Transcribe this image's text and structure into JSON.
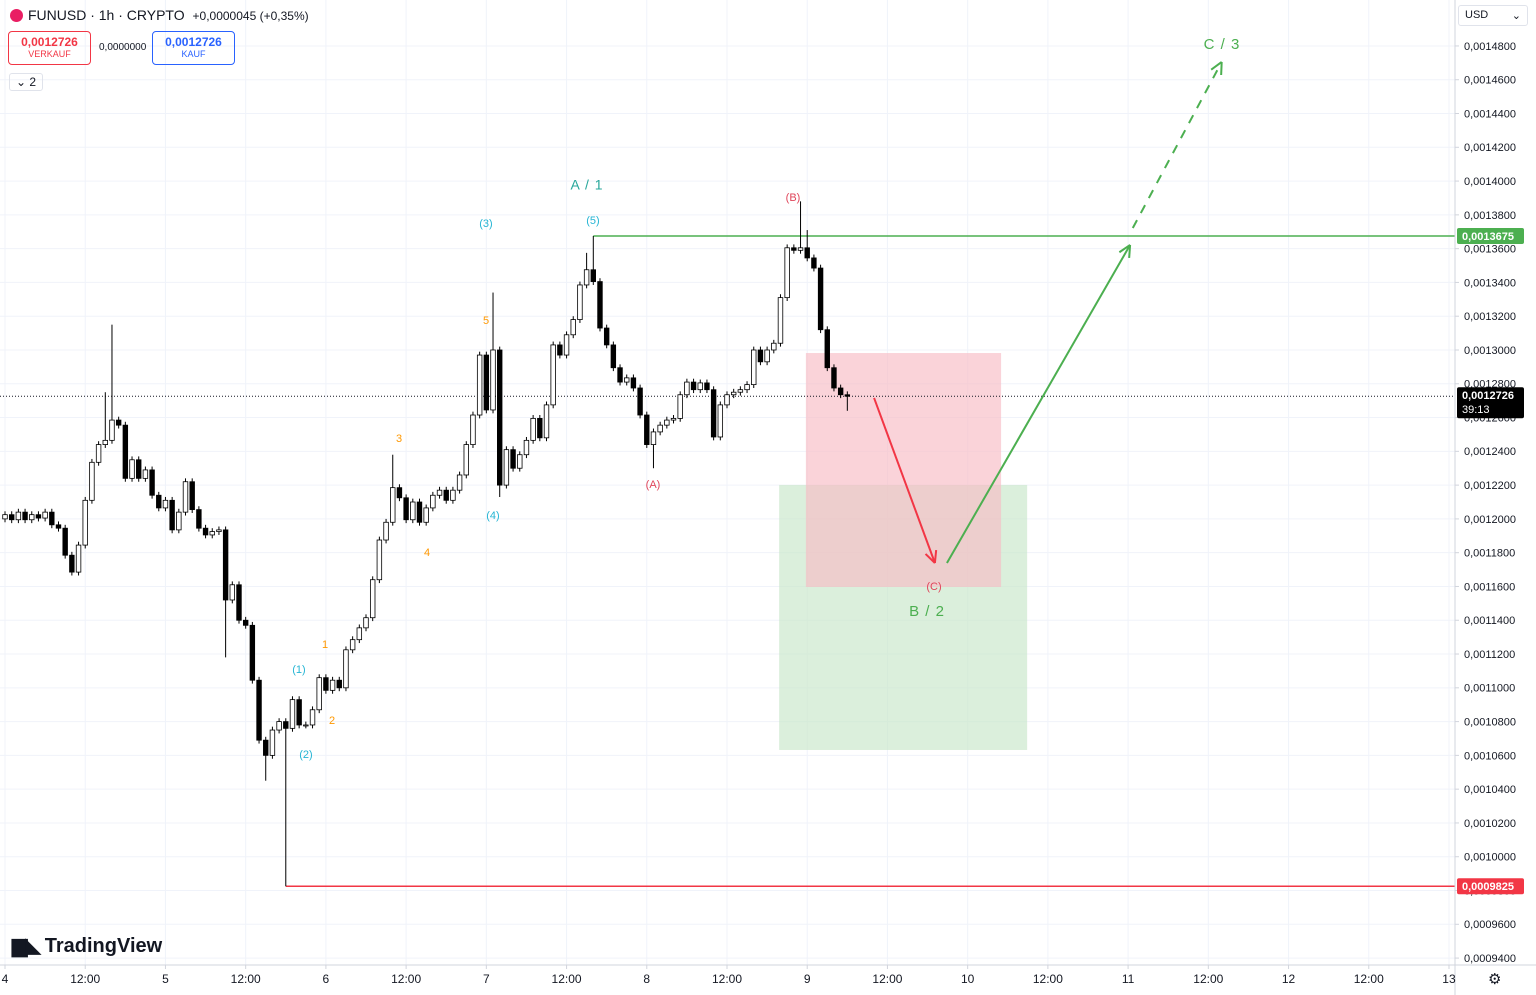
{
  "header": {
    "symbol": "FUNUSD · 1h · CRYPTO",
    "change": "+0,0000045 (+0,35%)",
    "sell_price": "0,0012726",
    "sell_label": "VERKAUF",
    "spread": "0,0000000",
    "buy_price": "0,0012726",
    "buy_label": "KAUF",
    "indicators_count": "2",
    "currency": "USD",
    "logo": "TradingView"
  },
  "chart_data": {
    "type": "candlestick",
    "up_color": "#ffffff",
    "down_color": "#000000",
    "grid": true,
    "xlim": [
      -0.75,
      216.9
    ],
    "xticks": [
      {
        "value": 0,
        "label": "4"
      },
      {
        "value": 12,
        "label": "12:00"
      },
      {
        "value": 24,
        "label": "5"
      },
      {
        "value": 36,
        "label": "12:00"
      },
      {
        "value": 48,
        "label": "6"
      },
      {
        "value": 60,
        "label": "12:00"
      },
      {
        "value": 72,
        "label": "7"
      },
      {
        "value": 84,
        "label": "12:00"
      },
      {
        "value": 96,
        "label": "8"
      },
      {
        "value": 108,
        "label": "12:00"
      },
      {
        "value": 120,
        "label": "9"
      },
      {
        "value": 132,
        "label": "12:00"
      },
      {
        "value": 144,
        "label": "10"
      },
      {
        "value": 156,
        "label": "12:00"
      },
      {
        "value": 168,
        "label": "11"
      },
      {
        "value": 180,
        "label": "12:00"
      },
      {
        "value": 192,
        "label": "12"
      },
      {
        "value": 204,
        "label": "12:00"
      },
      {
        "value": 216,
        "label": "13"
      }
    ],
    "ylim": [
      0.0009359,
      0.0015072
    ],
    "yticks": [
      {
        "value": 0.00094,
        "label": "0,0009400"
      },
      {
        "value": 0.00096,
        "label": "0,0009600"
      },
      {
        "value": 0.00098,
        "label": "0,0009800"
      },
      {
        "value": 0.001,
        "label": "0,0010000"
      },
      {
        "value": 0.00102,
        "label": "0,0010200"
      },
      {
        "value": 0.00104,
        "label": "0,0010400"
      },
      {
        "value": 0.00106,
        "label": "0,0010600"
      },
      {
        "value": 0.00108,
        "label": "0,0010800"
      },
      {
        "value": 0.0011,
        "label": "0,0011000"
      },
      {
        "value": 0.00112,
        "label": "0,0011200"
      },
      {
        "value": 0.00114,
        "label": "0,0011400"
      },
      {
        "value": 0.00116,
        "label": "0,0011600"
      },
      {
        "value": 0.00118,
        "label": "0,0011800"
      },
      {
        "value": 0.0012,
        "label": "0,0012000"
      },
      {
        "value": 0.00122,
        "label": "0,0012200"
      },
      {
        "value": 0.00124,
        "label": "0,0012400"
      },
      {
        "value": 0.00126,
        "label": "0,0012600"
      },
      {
        "value": 0.00128,
        "label": "0,0012800"
      },
      {
        "value": 0.0013,
        "label": "0,0013000"
      },
      {
        "value": 0.00132,
        "label": "0,0013200"
      },
      {
        "value": 0.00134,
        "label": "0,0013400"
      },
      {
        "value": 0.00136,
        "label": "0,0013600"
      },
      {
        "value": 0.00138,
        "label": "0,0013800"
      },
      {
        "value": 0.0014,
        "label": "0,0014000"
      },
      {
        "value": 0.00142,
        "label": "0,0014200"
      },
      {
        "value": 0.00144,
        "label": "0,0014400"
      },
      {
        "value": 0.00146,
        "label": "0,0014600"
      },
      {
        "value": 0.00148,
        "label": "0,0014800"
      }
    ],
    "open": [
      0.0012,
      0.0012025,
      0.0011995,
      0.001204,
      0.0011995,
      0.0012025,
      0.0012005,
      0.001204,
      0.0011965,
      0.0011945,
      0.0011785,
      0.0011685,
      0.0011845,
      0.001211,
      0.0012335,
      0.001244,
      0.0012465,
      0.0012585,
      0.0012555,
      0.001224,
      0.001235,
      0.001224,
      0.001229,
      0.001214,
      0.0012065,
      0.001211,
      0.0011935,
      0.001204,
      0.001222,
      0.0012055,
      0.0011945,
      0.0011905,
      0.0011925,
      0.0011935,
      0.001152,
      0.001161,
      0.00114,
      0.001137,
      0.0011045,
      0.001069,
      0.00106,
      0.001075,
      0.00108,
      0.001076,
      0.001093,
      0.001078,
      0.001078,
      0.001087,
      0.001106,
      0.0010985,
      0.0011045,
      0.0011,
      0.0011225,
      0.0011285,
      0.0011355,
      0.0011415,
      0.001164,
      0.0011875,
      0.001198,
      0.0012185,
      0.0012125,
      0.0011995,
      0.00121,
      0.001198,
      0.0012065,
      0.001214,
      0.001217,
      0.001211,
      0.001217,
      0.001226,
      0.001244,
      0.0012615,
      0.001297,
      0.0012645,
      0.0013,
      0.00122,
      0.001241,
      0.00123,
      0.001238,
      0.0012465,
      0.0012595,
      0.001248,
      0.0012675,
      0.001303,
      0.001297,
      0.001309,
      0.001318,
      0.0013385,
      0.0013475,
      0.0013405,
      0.001313,
      0.001303,
      0.0012895,
      0.001281,
      0.0012835,
      0.0012775,
      0.0012615,
      0.001244,
      0.0012515,
      0.0012555,
      0.0012585,
      0.0012595,
      0.0012735,
      0.001281,
      0.0012765,
      0.0012805,
      0.0012765,
      0.0012485,
      0.0012675,
      0.0012735,
      0.001275,
      0.0012765,
      0.0012795,
      0.0013,
      0.001293,
      0.0013,
      0.001304,
      0.001331,
      0.0013605,
      0.001359,
      0.0013605,
      0.0013545,
      0.0013485,
      0.001312,
      0.0012895,
      0.0012775,
      0.0012735
    ],
    "high": [
      0.0012045,
      0.0012045,
      0.001206,
      0.001206,
      0.0012045,
      0.0012045,
      0.001206,
      0.001206,
      0.0011985,
      0.0011965,
      0.0011805,
      0.0011865,
      0.001213,
      0.0012355,
      0.001246,
      0.001275,
      0.001315,
      0.0012605,
      0.0012575,
      0.001237,
      0.001237,
      0.001231,
      0.001231,
      0.001216,
      0.001213,
      0.001213,
      0.001206,
      0.001224,
      0.001224,
      0.0012075,
      0.0011965,
      0.0011945,
      0.0011955,
      0.0011955,
      0.001163,
      0.001163,
      0.001142,
      0.001139,
      0.0011065,
      0.001071,
      0.001077,
      0.001082,
      0.001082,
      0.001095,
      0.001095,
      0.00108,
      0.001089,
      0.001108,
      0.001108,
      0.0011065,
      0.0011065,
      0.0011245,
      0.0011305,
      0.0011375,
      0.0011435,
      0.001166,
      0.0011895,
      0.0012,
      0.001238,
      0.0012205,
      0.0012145,
      0.001212,
      0.001212,
      0.0012085,
      0.001216,
      0.001219,
      0.001219,
      0.001219,
      0.001228,
      0.001246,
      0.0012635,
      0.001299,
      0.001299,
      0.001334,
      0.001302,
      0.001243,
      0.001243,
      0.00124,
      0.0012485,
      0.0012615,
      0.0012615,
      0.0012695,
      0.001305,
      0.001305,
      0.001311,
      0.00132,
      0.0013405,
      0.0013575,
      0.0013675,
      0.0013425,
      0.001315,
      0.001305,
      0.0012915,
      0.0012855,
      0.0012855,
      0.0012795,
      0.0012635,
      0.0012535,
      0.0012575,
      0.0012605,
      0.0012615,
      0.0012755,
      0.001283,
      0.001283,
      0.0012825,
      0.0012825,
      0.0012785,
      0.0012695,
      0.0012755,
      0.001277,
      0.0012785,
      0.0012815,
      0.001302,
      0.001302,
      0.001302,
      0.001306,
      0.001333,
      0.0013625,
      0.0013625,
      0.001388,
      0.001371,
      0.0013565,
      0.0013505,
      0.001314,
      0.0012915,
      0.0012795,
      0.0012755
    ],
    "low": [
      0.001198,
      0.0011975,
      0.0011975,
      0.0011975,
      0.0011975,
      0.0011985,
      0.0011985,
      0.0011945,
      0.0011925,
      0.0011765,
      0.0011665,
      0.0011665,
      0.0011825,
      0.001209,
      0.0012315,
      0.001242,
      0.0012445,
      0.0012535,
      0.001222,
      0.001222,
      0.001222,
      0.001222,
      0.001212,
      0.0012045,
      0.0012045,
      0.0011915,
      0.0011915,
      0.001202,
      0.0012035,
      0.0011925,
      0.0011885,
      0.0011885,
      0.0011905,
      0.001118,
      0.00115,
      0.001138,
      0.001135,
      0.0011025,
      0.001067,
      0.001045,
      0.001058,
      0.001073,
      0.0009825,
      0.001074,
      0.001076,
      0.001076,
      0.001076,
      0.001085,
      0.0010965,
      0.0010965,
      0.001098,
      0.001098,
      0.0011205,
      0.0011265,
      0.0011335,
      0.0011395,
      0.001162,
      0.0011855,
      0.001196,
      0.0012105,
      0.0011975,
      0.0011975,
      0.001196,
      0.001196,
      0.0012045,
      0.001212,
      0.001209,
      0.001209,
      0.001215,
      0.001224,
      0.001242,
      0.0012595,
      0.0012625,
      0.0012625,
      0.001213,
      0.001218,
      0.001228,
      0.001228,
      0.001236,
      0.0012445,
      0.001246,
      0.001246,
      0.0012655,
      0.001295,
      0.001295,
      0.001307,
      0.001316,
      0.0013365,
      0.0013385,
      0.001311,
      0.001301,
      0.0012875,
      0.001279,
      0.001279,
      0.0012755,
      0.0012595,
      0.001242,
      0.00123,
      0.0012495,
      0.0012535,
      0.0012565,
      0.0012575,
      0.0012715,
      0.0012745,
      0.0012745,
      0.0012745,
      0.0012465,
      0.0012465,
      0.0012655,
      0.0012715,
      0.001273,
      0.0012745,
      0.0012775,
      0.001291,
      0.001291,
      0.001298,
      0.001302,
      0.001329,
      0.001357,
      0.001357,
      0.0013525,
      0.0013465,
      0.00131,
      0.0012875,
      0.0012755,
      0.0012715,
      0.001264
    ],
    "close": [
      0.0012025,
      0.0011995,
      0.001204,
      0.0011995,
      0.0012025,
      0.0012005,
      0.001204,
      0.0011965,
      0.0011945,
      0.0011785,
      0.0011685,
      0.0011845,
      0.001211,
      0.0012335,
      0.001244,
      0.0012465,
      0.0012585,
      0.0012555,
      0.001224,
      0.001235,
      0.001224,
      0.001229,
      0.001214,
      0.0012065,
      0.001211,
      0.0011935,
      0.001204,
      0.001222,
      0.0012055,
      0.0011945,
      0.0011905,
      0.0011925,
      0.0011935,
      0.001152,
      0.001161,
      0.00114,
      0.001137,
      0.0011045,
      0.001069,
      0.00106,
      0.001075,
      0.00108,
      0.001076,
      0.001093,
      0.001078,
      0.001078,
      0.001087,
      0.001106,
      0.0010985,
      0.0011045,
      0.0011,
      0.0011225,
      0.0011285,
      0.0011355,
      0.0011415,
      0.001164,
      0.0011875,
      0.001198,
      0.0012185,
      0.0012125,
      0.0011995,
      0.00121,
      0.001198,
      0.0012065,
      0.001214,
      0.001217,
      0.001211,
      0.001217,
      0.001226,
      0.001244,
      0.0012615,
      0.001297,
      0.0012645,
      0.0013,
      0.00122,
      0.001241,
      0.00123,
      0.001238,
      0.0012465,
      0.0012595,
      0.001248,
      0.0012675,
      0.001303,
      0.001297,
      0.001309,
      0.001318,
      0.0013385,
      0.0013475,
      0.0013405,
      0.001313,
      0.001303,
      0.0012895,
      0.001281,
      0.0012835,
      0.0012775,
      0.0012615,
      0.001244,
      0.0012515,
      0.0012555,
      0.0012585,
      0.0012595,
      0.0012735,
      0.001281,
      0.0012765,
      0.0012805,
      0.0012765,
      0.0012485,
      0.0012675,
      0.0012735,
      0.001275,
      0.0012765,
      0.0012795,
      0.0013,
      0.001293,
      0.0013,
      0.001304,
      0.001331,
      0.0013605,
      0.001359,
      0.0013605,
      0.0013545,
      0.0013485,
      0.001312,
      0.0012895,
      0.0012775,
      0.0012735,
      0.0012726
    ],
    "last": {
      "value": 0.0012726,
      "label": "0,0012726",
      "countdown": "39:13"
    },
    "levels": [
      {
        "value": 0.0013675,
        "label": "0,0013675",
        "color": "#4caf50",
        "start": 88
      },
      {
        "value": 0.0009825,
        "label": "0,0009825",
        "color": "#f23645",
        "start": 42
      }
    ],
    "zones": [
      {
        "color": "#f7a7b0",
        "start": 115.8,
        "end": 152.9,
        "top": 0.0012201,
        "bottom": 0.0010632,
        "fill": "#c8e6c9"
      },
      {
        "color": "#f7a7b0",
        "start": 119.8,
        "end": 149,
        "top": 0.0012982,
        "bottom": 0.0011597,
        "fill": "#f8bcc4"
      }
    ],
    "arrows": [
      {
        "color": "#f23645",
        "dashed": false,
        "x": [
          130,
          139.1
        ],
        "y": [
          0.0012716,
          0.0011739
        ]
      },
      {
        "color": "#4caf50",
        "dashed": false,
        "x": [
          140.9,
          168.3
        ],
        "y": [
          0.0011739,
          0.0013622
        ]
      },
      {
        "color": "#4caf50",
        "dashed": true,
        "x": [
          168.7,
          182
        ],
        "y": [
          0.0013722,
          0.0014705
        ]
      }
    ],
    "annotations": [
      {
        "text": "(1)",
        "color": "#26b5d4"
      },
      {
        "text": "(2)",
        "color": "#26b5d4"
      },
      {
        "text": "(3)",
        "color": "#26b5d4"
      },
      {
        "text": "(4)",
        "color": "#26b5d4"
      },
      {
        "text": "(5)",
        "color": "#26b5d4"
      },
      {
        "text": "A / 1",
        "color": "#26a69a"
      },
      {
        "text": "1",
        "color": "#ff9800"
      },
      {
        "text": "2",
        "color": "#ff9800"
      },
      {
        "text": "3",
        "color": "#ff9800"
      },
      {
        "text": "4",
        "color": "#ff9800"
      },
      {
        "text": "5",
        "color": "#ff9800"
      },
      {
        "text": "(A)",
        "color": "#e0455a"
      },
      {
        "text": "(B)",
        "color": "#e0455a"
      },
      {
        "text": "(C)",
        "color": "#e0455a"
      },
      {
        "text": "B / 2",
        "color": "#4caf50"
      },
      {
        "text": "C / 3",
        "color": "#4caf50"
      }
    ]
  }
}
